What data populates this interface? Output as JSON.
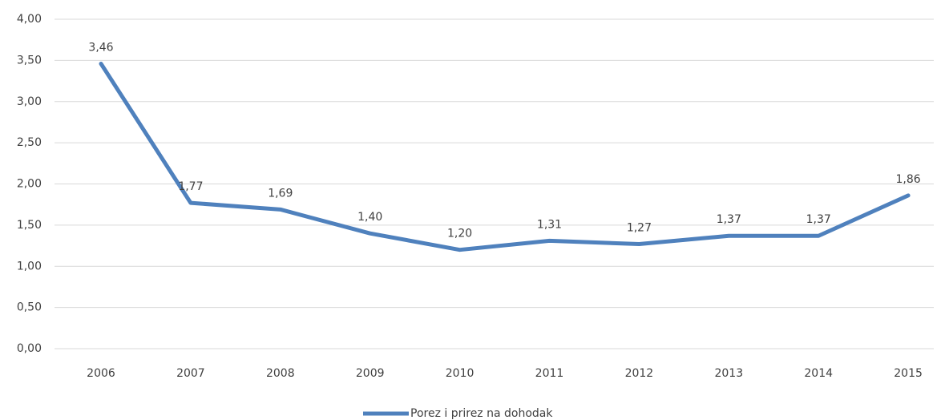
{
  "chart_data": {
    "type": "line",
    "categories": [
      "2006",
      "2007",
      "2008",
      "2009",
      "2010",
      "2011",
      "2012",
      "2013",
      "2014",
      "2015"
    ],
    "series": [
      {
        "name": "Porez i prirez na dohodak",
        "color": "#4f81bd",
        "values": [
          3.46,
          1.77,
          1.69,
          1.4,
          1.2,
          1.31,
          1.27,
          1.37,
          1.37,
          1.86
        ],
        "value_labels": [
          "3,46",
          "1,77",
          "1,69",
          "1,40",
          "1,20",
          "1,31",
          "1,27",
          "1,37",
          "1,37",
          "1,86"
        ]
      }
    ],
    "ylim": [
      0,
      4
    ],
    "yticks": [
      {
        "value": 0,
        "label": "0,00"
      },
      {
        "value": 0.5,
        "label": "0,50"
      },
      {
        "value": 1,
        "label": "1,00"
      },
      {
        "value": 1.5,
        "label": "1,50"
      },
      {
        "value": 2,
        "label": "2,00"
      },
      {
        "value": 2.5,
        "label": "2,50"
      },
      {
        "value": 3,
        "label": "3,00"
      },
      {
        "value": 3.5,
        "label": "3,50"
      },
      {
        "value": 4,
        "label": "4,00"
      }
    ],
    "grid": true,
    "legend": "bottom"
  }
}
